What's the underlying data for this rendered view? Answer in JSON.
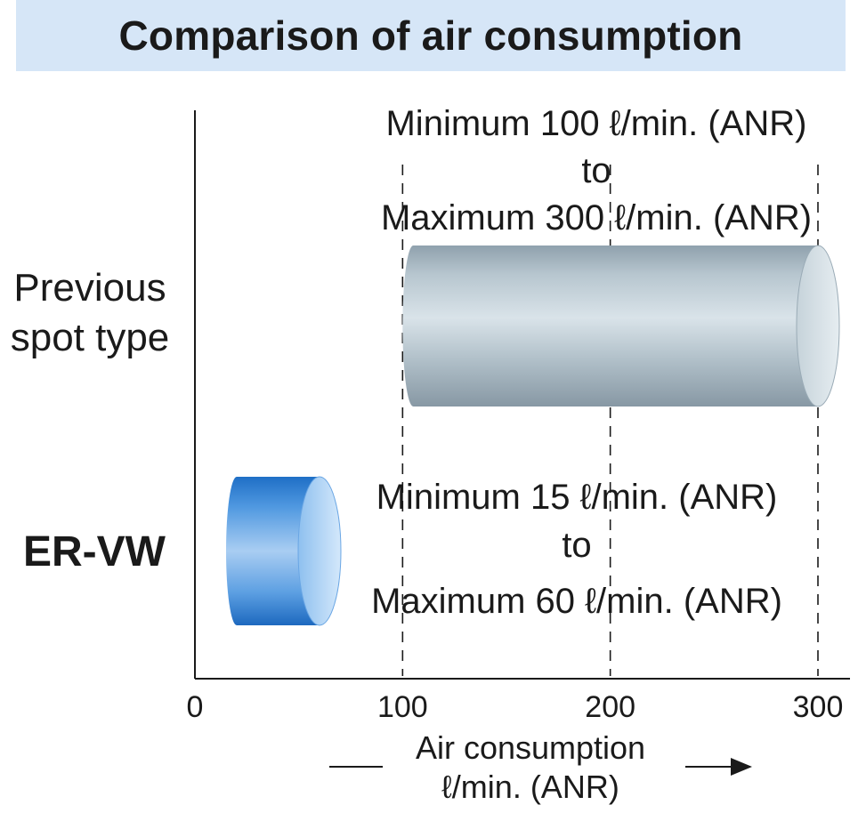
{
  "chart_data": {
    "type": "bar",
    "orientation": "horizontal",
    "title": "Comparison of air consumption",
    "xlabel_line1": "Air consumption",
    "xlabel_line2": "ℓ/min. (ANR)",
    "xlim": [
      0,
      300
    ],
    "x_ticks": [
      "0",
      "100",
      "200",
      "300"
    ],
    "categories": [
      {
        "label_lines": [
          "Previous",
          "spot type"
        ],
        "bold": false,
        "min": 100,
        "max": 300,
        "annotation": [
          "Minimum 100 ℓ/min. (ANR)",
          "to",
          "Maximum 300 ℓ/min. (ANR)"
        ]
      },
      {
        "label_lines": [
          "ER-VW"
        ],
        "bold": true,
        "min": 15,
        "max": 60,
        "annotation": [
          "Minimum 15 ℓ/min. (ANR)",
          "to",
          "Maximum 60 ℓ/min. (ANR)"
        ]
      }
    ],
    "gridlines": "dashed vertical at 100, 200, 300",
    "colors": {
      "previous": "#9fb1bd",
      "ervw": "#2f7fd0"
    }
  }
}
